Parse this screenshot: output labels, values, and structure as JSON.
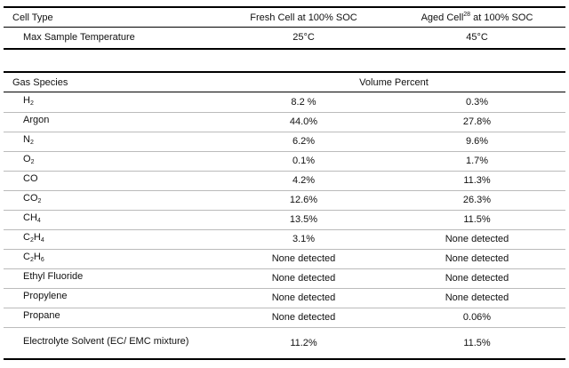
{
  "table1": {
    "headers": {
      "cell_type": "Cell Type",
      "fresh": "Fresh Cell at 100% SOC",
      "aged_prefix": "Aged Cell",
      "aged_sup": "28",
      "aged_suffix": " at 100% SOC"
    },
    "row": {
      "label": "Max Sample Temperature",
      "fresh": "25°C",
      "aged": "45°C"
    }
  },
  "table2": {
    "headers": {
      "species": "Gas Species",
      "volume": "Volume Percent"
    },
    "rows": [
      {
        "base": "H",
        "sub1": "2",
        "mid": "",
        "sub2": "",
        "fresh": "8.2 %",
        "aged": "0.3%"
      },
      {
        "base": "Argon",
        "sub1": "",
        "mid": "",
        "sub2": "",
        "fresh": "44.0%",
        "aged": "27.8%"
      },
      {
        "base": "N",
        "sub1": "2",
        "mid": "",
        "sub2": "",
        "fresh": "6.2%",
        "aged": "9.6%"
      },
      {
        "base": "O",
        "sub1": "2",
        "mid": "",
        "sub2": "",
        "fresh": "0.1%",
        "aged": "1.7%"
      },
      {
        "base": "CO",
        "sub1": "",
        "mid": "",
        "sub2": "",
        "fresh": "4.2%",
        "aged": "11.3%"
      },
      {
        "base": "CO",
        "sub1": "2",
        "mid": "",
        "sub2": "",
        "fresh": "12.6%",
        "aged": "26.3%"
      },
      {
        "base": "CH",
        "sub1": "4",
        "mid": "",
        "sub2": "",
        "fresh": "13.5%",
        "aged": "11.5%"
      },
      {
        "base": "C",
        "sub1": "2",
        "mid": "H",
        "sub2": "4",
        "fresh": "3.1%",
        "aged": "None detected"
      },
      {
        "base": "C",
        "sub1": "2",
        "mid": "H",
        "sub2": "6",
        "fresh": "None detected",
        "aged": "None detected"
      },
      {
        "base": "Ethyl Fluoride",
        "sub1": "",
        "mid": "",
        "sub2": "",
        "fresh": "None detected",
        "aged": "None detected"
      },
      {
        "base": "Propylene",
        "sub1": "",
        "mid": "",
        "sub2": "",
        "fresh": "None detected",
        "aged": "None detected"
      },
      {
        "base": "Propane",
        "sub1": "",
        "mid": "",
        "sub2": "",
        "fresh": "None detected",
        "aged": "0.06%"
      },
      {
        "base": "Electrolyte Solvent (EC/ EMC mixture)",
        "sub1": "",
        "mid": "",
        "sub2": "",
        "fresh": "11.2%",
        "aged": "11.5%"
      }
    ]
  }
}
